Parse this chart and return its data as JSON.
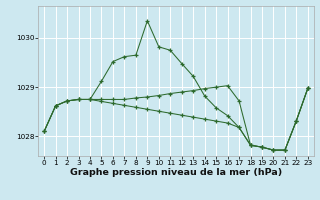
{
  "title": "Graphe pression niveau de la mer (hPa)",
  "background_color": "#cde8f0",
  "grid_color": "#ffffff",
  "line_color": "#2d6a2d",
  "xlim": [
    -0.5,
    23.5
  ],
  "ylim": [
    1027.6,
    1030.65
  ],
  "yticks": [
    1028,
    1029,
    1030
  ],
  "xticks": [
    0,
    1,
    2,
    3,
    4,
    5,
    6,
    7,
    8,
    9,
    10,
    11,
    12,
    13,
    14,
    15,
    16,
    17,
    18,
    19,
    20,
    21,
    22,
    23
  ],
  "line1": [
    1028.1,
    1028.62,
    1028.72,
    1028.75,
    1028.75,
    1029.12,
    1029.52,
    1029.62,
    1029.65,
    1030.35,
    1029.82,
    1029.75,
    1029.48,
    1029.22,
    1028.82,
    1028.58,
    1028.42,
    1028.18,
    1027.82,
    1027.78,
    1027.72,
    1027.72,
    1028.32,
    1028.98
  ],
  "line2": [
    1028.1,
    1028.62,
    1028.72,
    1028.75,
    1028.75,
    1028.75,
    1028.75,
    1028.75,
    1028.78,
    1028.8,
    1028.83,
    1028.87,
    1028.9,
    1028.93,
    1028.97,
    1029.0,
    1029.03,
    1028.72,
    1027.82,
    1027.78,
    1027.72,
    1027.72,
    1028.32,
    1028.98
  ],
  "line3": [
    1028.1,
    1028.62,
    1028.72,
    1028.75,
    1028.75,
    1028.71,
    1028.67,
    1028.63,
    1028.59,
    1028.55,
    1028.51,
    1028.47,
    1028.43,
    1028.39,
    1028.35,
    1028.31,
    1028.27,
    1028.18,
    1027.82,
    1027.78,
    1027.72,
    1027.72,
    1028.32,
    1028.98
  ],
  "title_fontsize": 6.8,
  "tick_fontsize": 5.2
}
